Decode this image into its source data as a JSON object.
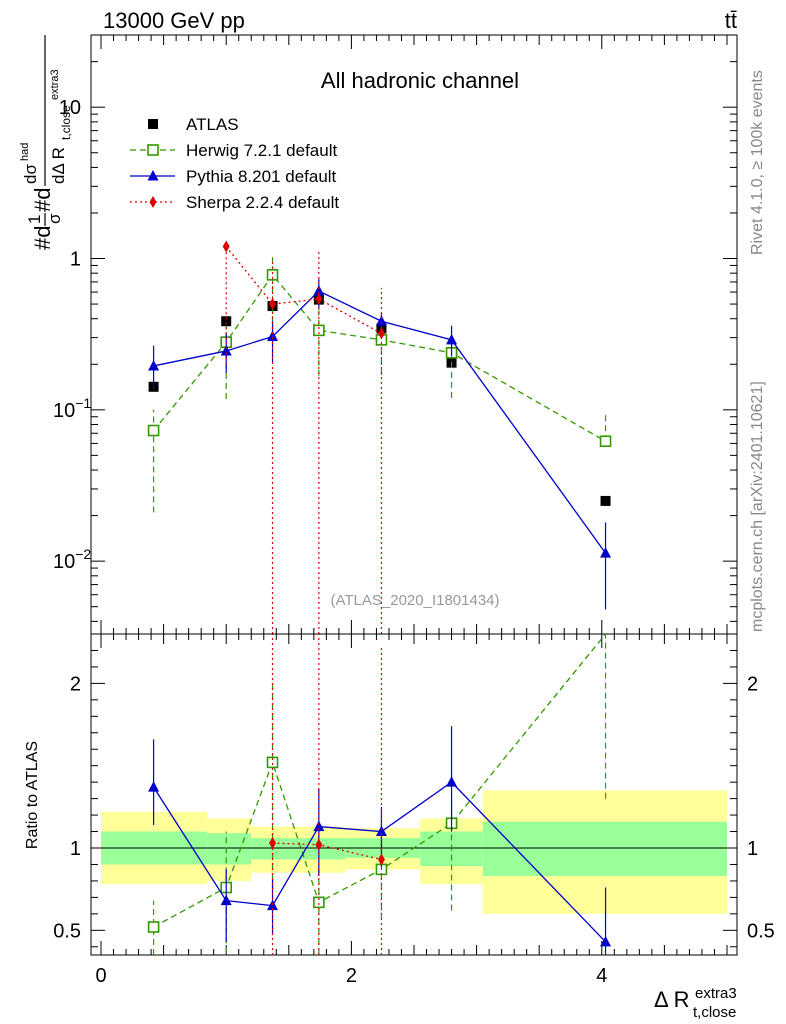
{
  "header": {
    "energy_label": "13000 GeV pp",
    "process_label": "tt̄",
    "side_rivet": "Rivet 4.1.0, ≥ 100k events",
    "side_mcplots": "mcplots.cern.ch [arXiv:2401.10621]"
  },
  "chart_data": [
    {
      "type": "line",
      "panel": "main",
      "title": "All hadronic channel",
      "watermark": "(ATLAS_2020_I1801434)",
      "ylabel": "#d 1/σ #d dσ/dΔ R(t,close extra3)",
      "yscale": "log",
      "ylim": [
        0.0033,
        30
      ],
      "xlim": [
        -0.08,
        5.08
      ],
      "yticks": [
        {
          "value": 0.01,
          "base": "10",
          "exp": "−2"
        },
        {
          "value": 0.1,
          "base": "10",
          "exp": "−1"
        },
        {
          "value": 1,
          "base": "1",
          "exp": ""
        },
        {
          "value": 10,
          "base": "10",
          "exp": ""
        }
      ],
      "legend": [
        "ATLAS",
        "Herwig 7.2.1 default",
        "Pythia 8.201 default",
        "Sherpa 2.2.4 default"
      ],
      "series": [
        {
          "name": "ATLAS",
          "color": "#000000",
          "style": "marker",
          "x": [
            0.42,
            1.0,
            1.37,
            1.74,
            2.24,
            2.8,
            4.03
          ],
          "y": [
            0.142,
            0.385,
            0.485,
            0.535,
            0.345,
            0.205,
            0.025
          ]
        },
        {
          "name": "Herwig 7.2.1 default",
          "color": "#339900",
          "style": "dashed",
          "x": [
            0.42,
            1.0,
            1.37,
            1.74,
            2.24,
            2.8,
            4.03
          ],
          "y": [
            0.073,
            0.28,
            0.78,
            0.335,
            0.29,
            0.238,
            0.062
          ],
          "err_lo": [
            0.052,
            0.162,
            0.5,
            0.167,
            0.12,
            0.118,
            0.0
          ],
          "err_hi": [
            0.027,
            0.08,
            0.24,
            0.12,
            0.11,
            0.07,
            0.032
          ]
        },
        {
          "name": "Pythia 8.201 default",
          "color": "#0000cc",
          "style": "solid",
          "x": [
            0.42,
            1.0,
            1.37,
            1.74,
            2.24,
            2.8,
            4.03
          ],
          "y": [
            0.195,
            0.245,
            0.305,
            0.61,
            0.385,
            0.29,
            0.0113
          ],
          "err_lo": [
            0.06,
            0.07,
            0.1,
            0.15,
            0.08,
            0.065,
            0.0065
          ],
          "err_hi": [
            0.07,
            0.08,
            0.08,
            0.12,
            0.05,
            0.07,
            0.0067
          ]
        },
        {
          "name": "Sherpa 2.2.4 default",
          "color": "#dd0000",
          "style": "dotted",
          "x": [
            1.0,
            1.37,
            1.74,
            2.24
          ],
          "y": [
            1.2,
            0.5,
            0.54,
            0.32
          ],
          "err_lo": [
            1.0,
            0.5,
            0.54,
            0.32
          ],
          "err_hi": [
            0.0,
            0.5,
            0.6,
            0.32
          ]
        }
      ]
    },
    {
      "type": "line",
      "panel": "ratio",
      "ylabel": "Ratio to ATLAS",
      "xlabel": "Δ R(t,close extra3)",
      "xlabel_main": "Δ R",
      "xlabel_sup": "extra3",
      "xlabel_sub": "t,close",
      "ylim": [
        0.35,
        2.3
      ],
      "yticks": [
        0.5,
        1,
        2
      ],
      "xticks": [
        0,
        2,
        4
      ],
      "bands": {
        "edges": [
          0.0,
          0.85,
          1.2,
          1.95,
          2.55,
          3.05,
          5.0
        ],
        "yellow": [
          [
            0.78,
            1.22
          ],
          [
            0.8,
            1.18
          ],
          [
            0.85,
            1.13
          ],
          [
            0.87,
            1.12
          ],
          [
            0.78,
            1.18
          ],
          [
            0.6,
            1.35
          ]
        ],
        "green": [
          [
            0.9,
            1.1
          ],
          [
            0.9,
            1.09
          ],
          [
            0.93,
            1.06
          ],
          [
            0.94,
            1.06
          ],
          [
            0.89,
            1.1
          ],
          [
            0.83,
            1.16
          ]
        ]
      },
      "series": [
        {
          "name": "Herwig 7.2.1 default",
          "color": "#339900",
          "style": "dashed",
          "x": [
            0.42,
            1.0,
            1.37,
            1.74,
            2.24,
            2.8,
            4.03
          ],
          "y": [
            0.52,
            0.76,
            1.52,
            0.67,
            0.87,
            1.15,
            2.35
          ],
          "err_lo": [
            0.17,
            0.4,
            0.77,
            0.5,
            0.3,
            0.53,
            1.05
          ],
          "err_hi": [
            0.16,
            0.34,
            0.49,
            0.22,
            0.32,
            0.15,
            0.0
          ]
        },
        {
          "name": "Pythia 8.201 default",
          "color": "#0000cc",
          "style": "solid",
          "x": [
            0.42,
            1.0,
            1.37,
            1.74,
            2.24,
            2.8,
            4.03
          ],
          "y": [
            1.37,
            0.68,
            0.65,
            1.13,
            1.1,
            1.4,
            0.43
          ],
          "err_lo": [
            0.23,
            0.25,
            0.18,
            0.3,
            0.22,
            0.3,
            0.2
          ],
          "err_hi": [
            0.29,
            0.19,
            0.16,
            0.23,
            0.15,
            0.34,
            0.33
          ]
        },
        {
          "name": "Sherpa 2.2.4 default",
          "color": "#dd0000",
          "style": "dotted",
          "x": [
            1.37,
            1.74,
            2.24
          ],
          "y": [
            1.03,
            1.02,
            0.93
          ],
          "err_lo": [
            1.0,
            1.0,
            0.93
          ],
          "err_hi": [
            1.3,
            1.3,
            1.3
          ]
        }
      ]
    }
  ]
}
